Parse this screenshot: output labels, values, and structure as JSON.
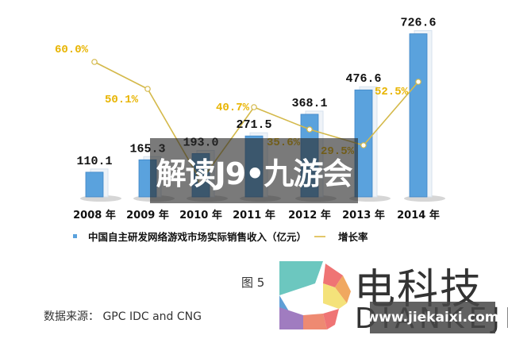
{
  "chart_data": {
    "type": "bar",
    "title": "",
    "categories": [
      "2008 年",
      "2009 年",
      "2010 年",
      "2011 年",
      "2012 年",
      "2013 年",
      "2014 年"
    ],
    "series": [
      {
        "name": "中国自主研发网络游戏市场实际销售收入（亿元）",
        "type": "bar",
        "values": [
          110.1,
          165.3,
          193.0,
          271.5,
          368.1,
          476.6,
          726.6
        ],
        "labels": [
          "110.1",
          "165.3",
          "193.0",
          "271.5",
          "368.1",
          "476.6",
          "726.6"
        ]
      },
      {
        "name": "增长率",
        "type": "line",
        "values": [
          60.0,
          50.1,
          null,
          40.7,
          35.6,
          29.5,
          52.5
        ],
        "labels": [
          "60.0%",
          "50.1%",
          "",
          "40.7%",
          "35.6%",
          "29.5%",
          "52.5%"
        ]
      }
    ],
    "xlabel": "",
    "ylabel": "",
    "legend_position": "bottom",
    "grid": false,
    "colors": {
      "bar": "#5aa2dd",
      "line": "#d4b94a",
      "rate_label": "#e8b400"
    }
  },
  "legend": {
    "bar_label": "中国自主研发网络游戏市场实际销售收入（亿元）",
    "line_label": "增长率"
  },
  "figure_label": "图 5",
  "source": "数据来源：  GPC IDC and CNG",
  "overlay_banner": "解读J9•九游会",
  "logo": {
    "title": "电科技",
    "subtitle": "DIANKEJI"
  },
  "watermark": "www.jiekaixi.com"
}
